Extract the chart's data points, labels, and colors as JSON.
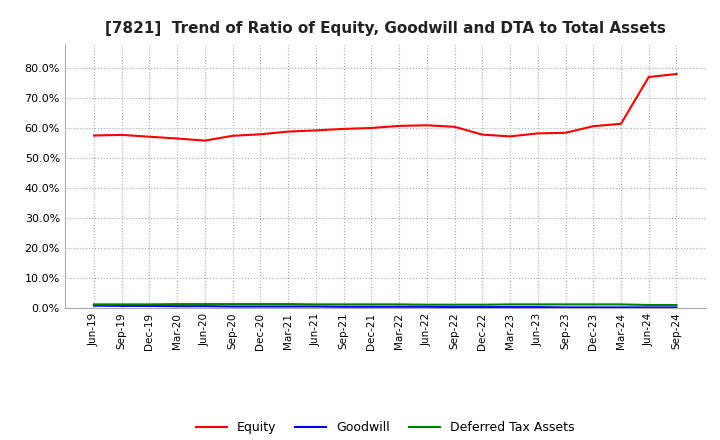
{
  "title": "[7821]  Trend of Ratio of Equity, Goodwill and DTA to Total Assets",
  "title_fontsize": 11,
  "ylim": [
    0.0,
    0.88
  ],
  "yticks": [
    0.0,
    0.1,
    0.2,
    0.3,
    0.4,
    0.5,
    0.6,
    0.7,
    0.8
  ],
  "yticklabels": [
    "0.0%",
    "10.0%",
    "20.0%",
    "30.0%",
    "40.0%",
    "50.0%",
    "60.0%",
    "70.0%",
    "80.0%"
  ],
  "x_labels": [
    "Jun-19",
    "Sep-19",
    "Dec-19",
    "Mar-20",
    "Jun-20",
    "Sep-20",
    "Dec-20",
    "Mar-21",
    "Jun-21",
    "Sep-21",
    "Dec-21",
    "Mar-22",
    "Jun-22",
    "Sep-22",
    "Dec-22",
    "Mar-23",
    "Jun-23",
    "Sep-23",
    "Dec-23",
    "Mar-24",
    "Jun-24",
    "Sep-24"
  ],
  "equity": [
    0.575,
    0.577,
    0.571,
    0.565,
    0.558,
    0.574,
    0.579,
    0.588,
    0.592,
    0.597,
    0.6,
    0.607,
    0.609,
    0.604,
    0.578,
    0.572,
    0.582,
    0.584,
    0.606,
    0.614,
    0.77,
    0.78
  ],
  "goodwill": [
    0.008,
    0.007,
    0.007,
    0.006,
    0.006,
    0.005,
    0.005,
    0.005,
    0.005,
    0.004,
    0.004,
    0.004,
    0.004,
    0.003,
    0.003,
    0.003,
    0.003,
    0.002,
    0.002,
    0.002,
    0.002,
    0.002
  ],
  "dta": [
    0.012,
    0.012,
    0.012,
    0.013,
    0.013,
    0.013,
    0.013,
    0.013,
    0.012,
    0.012,
    0.012,
    0.012,
    0.011,
    0.011,
    0.011,
    0.012,
    0.012,
    0.012,
    0.012,
    0.012,
    0.01,
    0.01
  ],
  "equity_color": "#FF0000",
  "goodwill_color": "#0000FF",
  "dta_color": "#008000",
  "bg_color": "#FFFFFF",
  "plot_bg_color": "#FFFFFF",
  "grid_color": "#AAAAAA",
  "legend_labels": [
    "Equity",
    "Goodwill",
    "Deferred Tax Assets"
  ]
}
